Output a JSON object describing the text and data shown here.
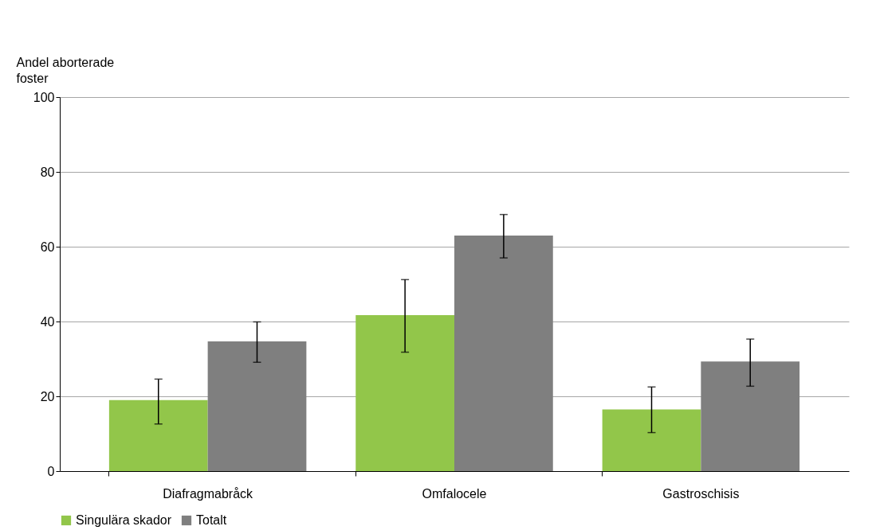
{
  "chart_data": {
    "type": "bar",
    "ylabel": "Andel aborterade foster",
    "categories": [
      "Diafragmabråck",
      "Omfalocele",
      "Gastroschisis"
    ],
    "series": [
      {
        "name": "Singulära skador",
        "color": "#92c64a",
        "values": [
          19.0,
          41.7,
          16.5
        ],
        "errors": [
          [
            12.6,
            24.6
          ],
          [
            31.8,
            51.2
          ],
          [
            10.3,
            22.5
          ]
        ]
      },
      {
        "name": "Totalt",
        "color": "#7f7f7f",
        "values": [
          34.7,
          63.0,
          29.3
        ],
        "errors": [
          [
            29.1,
            39.9
          ],
          [
            57.0,
            68.6
          ],
          [
            22.7,
            35.3
          ]
        ]
      }
    ],
    "ylim": [
      0,
      100
    ],
    "yticks": [
      0,
      20,
      40,
      60,
      80,
      100
    ],
    "grid": "y",
    "legend": "bottom"
  }
}
